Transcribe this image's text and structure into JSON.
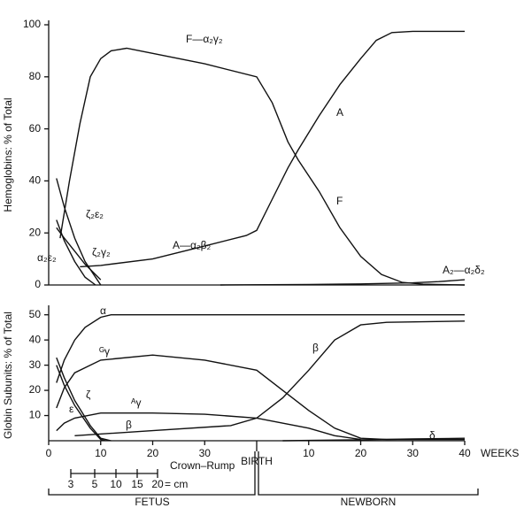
{
  "chart_data": [
    {
      "type": "line",
      "y_label": "Hemoglobins: % of Total",
      "ylim": [
        0,
        100
      ],
      "yticks": [
        0,
        20,
        40,
        60,
        80,
        100
      ],
      "xlim": [
        0,
        80
      ],
      "series": [
        {
          "name": "F—α₂γ₂",
          "color": "#111111",
          "x": [
            2.2,
            4,
            6,
            8,
            10,
            12,
            15,
            20,
            30,
            40,
            43,
            46,
            48,
            52,
            56,
            60,
            64,
            68,
            72,
            80
          ],
          "values": [
            18,
            40,
            62,
            80,
            87,
            90,
            91,
            89,
            85,
            80,
            70,
            55,
            48,
            36,
            22,
            11,
            4,
            1,
            0.3,
            0
          ]
        },
        {
          "name": "A—α₂β₂",
          "color": "#111111",
          "x": [
            6,
            10,
            20,
            30,
            38,
            40,
            43,
            46,
            48,
            52,
            56,
            60,
            63,
            66,
            70,
            80
          ],
          "values": [
            7,
            7.5,
            10,
            15,
            19,
            21,
            33,
            45,
            52,
            65,
            77,
            87,
            94,
            97,
            97.5,
            97.5
          ]
        },
        {
          "name": "A₂—α₂δ₂",
          "color": "#111111",
          "x": [
            33,
            50,
            60,
            70,
            75,
            80
          ],
          "values": [
            0,
            0.2,
            0.4,
            0.8,
            1.3,
            2
          ]
        },
        {
          "name": "ζ₂ε₂",
          "color": "#111111",
          "x": [
            1.5,
            3,
            5,
            7,
            9,
            10
          ],
          "values": [
            41,
            30,
            18,
            9,
            3,
            0
          ]
        },
        {
          "name": "ζ₂γ₂",
          "color": "#111111",
          "x": [
            1.5,
            3,
            5,
            7,
            9,
            10
          ],
          "values": [
            22,
            18,
            13,
            8,
            4,
            2
          ]
        },
        {
          "name": "α₂ε₂",
          "color": "#111111",
          "x": [
            1.5,
            3,
            5,
            7,
            9
          ],
          "values": [
            25,
            17,
            9,
            3,
            0
          ]
        }
      ],
      "annotations": [
        {
          "text": "A"
        },
        {
          "text": "F"
        }
      ]
    },
    {
      "type": "line",
      "y_label": "Globin Subunits: % of Total",
      "x_label": "WEEKS",
      "ylim": [
        0,
        52
      ],
      "yticks": [
        10,
        20,
        30,
        40,
        50
      ],
      "xlim": [
        0,
        80
      ],
      "xticks": [
        0,
        10,
        20,
        30,
        {
          "value": 40,
          "label": "BIRTH"
        },
        {
          "value": 50,
          "label": "10"
        },
        {
          "value": 60,
          "label": "20"
        },
        {
          "value": 70,
          "label": "30"
        },
        {
          "value": 80,
          "label": "40"
        }
      ],
      "series": [
        {
          "name": "α",
          "color": "#111111",
          "x": [
            1.5,
            3,
            5,
            7,
            10,
            12,
            20,
            40,
            60,
            80
          ],
          "values": [
            23,
            32,
            40,
            45,
            49,
            50,
            50,
            50,
            50,
            50
          ]
        },
        {
          "name": "ᴳγ",
          "color": "#111111",
          "x": [
            1.5,
            3,
            5,
            10,
            20,
            30,
            40,
            45,
            50,
            55,
            60,
            65,
            80
          ],
          "values": [
            13,
            21,
            27,
            32,
            34,
            32,
            28,
            20,
            12,
            5,
            1,
            0.5,
            0.5
          ]
        },
        {
          "name": "ᴬγ",
          "color": "#111111",
          "x": [
            1.5,
            3,
            5,
            10,
            20,
            30,
            40,
            50,
            55,
            60
          ],
          "values": [
            4,
            7,
            9,
            11,
            11,
            10.5,
            9,
            5,
            2,
            0.5
          ]
        },
        {
          "name": "β",
          "color": "#111111",
          "x": [
            5,
            20,
            35,
            40,
            45,
            50,
            55,
            60,
            65,
            80
          ],
          "values": [
            2,
            4,
            6,
            9,
            17,
            28,
            40,
            46,
            47,
            47.5
          ]
        },
        {
          "name": "δ",
          "color": "#111111",
          "x": [
            45,
            60,
            70,
            80
          ],
          "values": [
            0,
            0.4,
            0.7,
            1
          ]
        },
        {
          "name": "ζ",
          "color": "#111111",
          "x": [
            1.5,
            3,
            5,
            8,
            10,
            12
          ],
          "values": [
            33,
            25,
            16,
            6,
            1,
            0
          ]
        },
        {
          "name": "ε",
          "color": "#111111",
          "x": [
            1.5,
            3,
            5,
            8,
            10,
            11
          ],
          "values": [
            30,
            22,
            14,
            5,
            0.5,
            0
          ]
        }
      ],
      "annotations": [
        {
          "text": "β"
        }
      ]
    }
  ],
  "crown_rump": {
    "label": "Crown–Rump",
    "unit": "= cm",
    "ticks": [
      3,
      5,
      10,
      15,
      20
    ]
  },
  "periods": [
    "FETUS",
    "NEWBORN"
  ]
}
